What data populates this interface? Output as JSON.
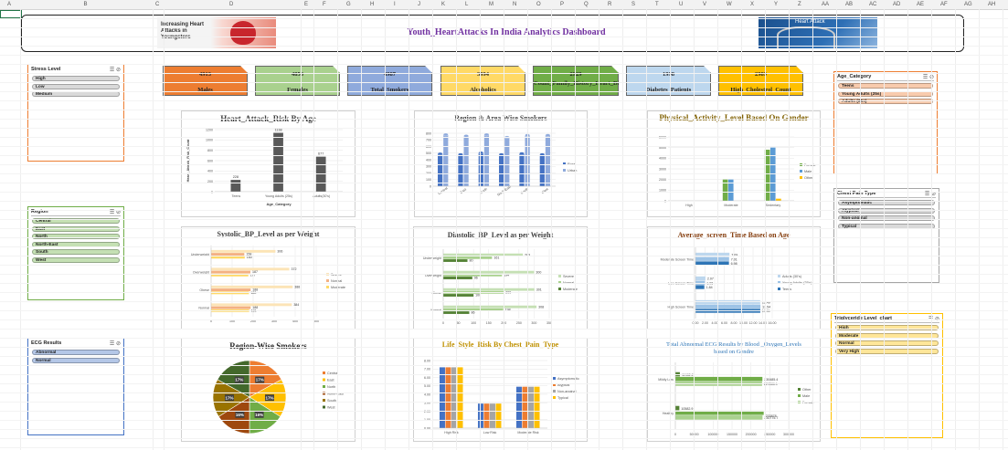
{
  "dashboard": {
    "title": "Youth_HeartAttacks In India Analytics Dashboard",
    "left_image_text": "Increasing Heart Attacks in Youngsters",
    "right_image_text": "Heart Attack"
  },
  "excel": {
    "columns": [
      "A",
      "B",
      "C",
      "D",
      "E",
      "F",
      "G",
      "H",
      "I",
      "J",
      "K",
      "L",
      "M",
      "N",
      "O",
      "P",
      "Q",
      "R",
      "S",
      "T",
      "U",
      "V",
      "W",
      "X",
      "Y",
      "Z",
      "AA",
      "AB",
      "AC",
      "AD",
      "AE",
      "AF",
      "AG",
      "AH"
    ]
  },
  "kpis": [
    {
      "value": "4913",
      "label": "Males",
      "color": "#ed7d31"
    },
    {
      "value": "4856",
      "label": "Females",
      "color": "#a9d18e"
    },
    {
      "value": "4987",
      "label": "Total_Smokers",
      "color": "#8faadc"
    },
    {
      "value": "3994",
      "label": "Alcoholics",
      "color": "#ffd966"
    },
    {
      "value": "2929",
      "label": "Count_Family_History_Heart_Disease",
      "color": "#70ad47"
    },
    {
      "value": "1998",
      "label": "Diabetes_Patients",
      "color": "#bdd7ee"
    },
    {
      "value": "2989",
      "label": "High_Cholestrol_Count",
      "color": "#ffc000"
    }
  ],
  "slicers": {
    "stress": {
      "title": "Stress Level",
      "items": [
        "High",
        "Low",
        "Medium"
      ]
    },
    "region": {
      "title": "Region",
      "items": [
        "Central",
        "East",
        "North",
        "North-East",
        "South",
        "West"
      ]
    },
    "ecg": {
      "title": "ECG Results",
      "items": [
        "Abnormal",
        "Normal"
      ]
    },
    "age": {
      "title": "Age_Category",
      "items": [
        "Teens",
        "Young Adults (25s)",
        "Adults (35s)"
      ]
    },
    "chest": {
      "title": "Chest Pain Type",
      "items": [
        "Asymptomatic",
        "Atypical",
        "Non-anginal",
        "Typical"
      ]
    },
    "trig": {
      "title": "Triglyceride Level_chart",
      "items": [
        "High",
        "Moderate",
        "Normal",
        "Very High"
      ]
    }
  },
  "filter_icon": "filter-icon",
  "chart_data": [
    {
      "id": "age_risk",
      "type": "bar",
      "title": "Heart_Attack_Risk By Age",
      "xlabel": "Age_Category",
      "ylabel": "Heart_Attack_Risk_Count",
      "categories": [
        "Teens",
        "Young Adults (25s)",
        "Adults(30's)"
      ],
      "values": [
        228,
        1138,
        677
      ],
      "value_labels": [
        "228",
        "1138",
        "677"
      ],
      "yticks": [
        "0",
        "200",
        "400",
        "600",
        "800",
        "1000",
        "1200"
      ],
      "ylim": [
        0,
        1200
      ],
      "color": "#595959"
    },
    {
      "id": "region_smokers",
      "type": "bar",
      "title": "Region & Area Wise Smokers",
      "categories": [
        "Central",
        "East",
        "North",
        "North-East",
        "South",
        "West"
      ],
      "series": [
        {
          "name": "Rural",
          "values": [
            490,
            480,
            505,
            480,
            495,
            480
          ],
          "color": "#4472c4"
        },
        {
          "name": "Urban",
          "values": [
            780,
            760,
            780,
            740,
            770,
            770
          ],
          "color": "#8faadc"
        }
      ],
      "yticks": [
        "0",
        "100",
        "200",
        "300",
        "400",
        "500",
        "600",
        "700",
        "800"
      ],
      "ylim": [
        0,
        800
      ]
    },
    {
      "id": "activity",
      "type": "bar",
      "title": "Physical_Activity_Level Based On Gender",
      "categories": [
        "High",
        "Moderate",
        "Sedentary"
      ],
      "series": [
        {
          "name": "Female",
          "values": [
            0,
            2000,
            4800
          ],
          "color": "#70ad47"
        },
        {
          "name": "Male",
          "values": [
            0,
            2000,
            5000
          ],
          "color": "#5b9bd5"
        },
        {
          "name": "Other",
          "values": [
            0,
            0,
            200
          ],
          "color": "#ffc000"
        }
      ],
      "yticks": [
        "0",
        "1000",
        "2000",
        "3000",
        "4000",
        "5000",
        "6000"
      ],
      "ylim": [
        0,
        6000
      ]
    },
    {
      "id": "systolic",
      "type": "bar",
      "title": "Systolic_BP_Level as per Weight",
      "categories": [
        "Underweight",
        "Overweight",
        "Obese",
        "Normal"
      ],
      "series": [
        {
          "name": "Severe",
          "values": [
            306,
            372,
            388,
            384
          ],
          "labels": [
            "306",
            "372",
            "388",
            "384"
          ],
          "color": "#fce4b6"
        },
        {
          "name": "Normal",
          "values": [
            158,
            187,
            188,
            188
          ],
          "labels": [
            "158",
            "187",
            "188",
            "188"
          ],
          "color": "#f4b183"
        },
        {
          "name": "Moderate",
          "values": [
            160,
            177,
            180,
            181
          ],
          "labels": [
            "160",
            "177",
            "180",
            "181"
          ],
          "color": "#ffd966"
        }
      ],
      "xticks": [
        "0",
        "100",
        "200",
        "300",
        "400",
        "500"
      ],
      "xlim": [
        0,
        500
      ]
    },
    {
      "id": "diastolic",
      "type": "bar",
      "title": "Diastolic_BP_Level as per Weight",
      "categories": [
        "Underweight",
        "Overweight",
        "Obese",
        "Normal"
      ],
      "series": [
        {
          "name": "Severe",
          "values": [
            263,
            300,
            301,
            308
          ],
          "labels": [
            "263",
            "300",
            "301",
            "308"
          ],
          "color": "#c5e0b4"
        },
        {
          "name": "Normal",
          "values": [
            161,
            194,
            200,
            198
          ],
          "labels": [
            "161",
            "194",
            "200",
            "198"
          ],
          "color": "#a9d18e"
        },
        {
          "name": "Moderate",
          "values": [
            80,
            96,
            100,
            86
          ],
          "labels": [
            "80",
            "96",
            "100",
            "86"
          ],
          "color": "#548235"
        }
      ],
      "xticks": [
        "0",
        "50",
        "100",
        "150",
        "200",
        "250",
        "300",
        "350"
      ],
      "xlim": [
        0,
        350
      ]
    },
    {
      "id": "screen",
      "type": "bar",
      "title": "Average_screen_Time Based on Age",
      "categories": [
        "Moderate Screen Time",
        "Low Screen Time",
        "High Screen Time"
      ],
      "series": [
        {
          "name": "Adults (30's)",
          "values": [
            7.09,
            2.07,
            13.49
          ],
          "labels": [
            "7.09",
            "2.07",
            "13.49"
          ],
          "color": "#bdd7ee"
        },
        {
          "name": "Young Adults (25's)",
          "values": [
            7.01,
            1.96,
            13.54
          ],
          "labels": [
            "7.01",
            "1.96",
            "13.54"
          ],
          "color": "#9dc3e6"
        },
        {
          "name": "Teens",
          "values": [
            6.98,
            1.84,
            13.51
          ],
          "labels": [
            "6.98",
            "1.84",
            "13.51"
          ],
          "color": "#2e75b6"
        }
      ],
      "xticks": [
        "0.00",
        "2.00",
        "4.00",
        "6.00",
        "8.00",
        "10.00",
        "12.00",
        "14.00",
        "16.00"
      ],
      "xlim": [
        0,
        16
      ]
    },
    {
      "id": "region_pie",
      "type": "pie",
      "title": "Region-Wise Smokers",
      "categories": [
        "Central",
        "East",
        "North",
        "North-East",
        "South",
        "West"
      ],
      "values": [
        17,
        17,
        16,
        16,
        17,
        17
      ],
      "labels": [
        "17%",
        "17%",
        "16%",
        "16%",
        "17%",
        "17%"
      ],
      "colors": [
        "#ed7d31",
        "#ffc000",
        "#70ad47",
        "#9e480e",
        "#997300",
        "#43682b"
      ]
    },
    {
      "id": "lifestyle",
      "type": "bar",
      "title": "Life_Style_Risk By Chest_Pain_Type",
      "categories": [
        "High Risk",
        "Low Risk",
        "Moderate Risk"
      ],
      "series": [
        {
          "name": "Asymptomatic",
          "values": [
            7.2,
            2.9,
            4.9
          ],
          "color": "#4472c4"
        },
        {
          "name": "Atypical",
          "values": [
            7.2,
            2.9,
            4.9
          ],
          "color": "#ed7d31"
        },
        {
          "name": "Non-anginal",
          "values": [
            7.2,
            2.9,
            4.9
          ],
          "color": "#a5a5a5"
        },
        {
          "name": "Typical",
          "values": [
            7.2,
            2.9,
            4.9
          ],
          "color": "#ffc000"
        }
      ],
      "yticks": [
        "0.00",
        "1.00",
        "2.00",
        "3.00",
        "4.00",
        "5.00",
        "6.00",
        "7.00",
        "8.00"
      ],
      "ylim": [
        0,
        8
      ]
    },
    {
      "id": "ecg",
      "type": "bar",
      "title": "Total Abnormal ECG Results by Blood _Oxygen_Levels based on Gendre",
      "categories": [
        "Mildly Low",
        "Healthy"
      ],
      "series": [
        {
          "name": "Other",
          "values": [
            11982.2,
            10582.9
          ],
          "labels": [
            "11982.2",
            "10582.9"
          ],
          "color": "#548235"
        },
        {
          "name": "Male",
          "values": [
            230485.4,
            233878
          ],
          "labels": [
            "230485.4",
            ""
          ],
          "color": "#70ad47"
        },
        {
          "name": "Female",
          "values": [
            229586.1,
            230775.7
          ],
          "labels": [
            "229586.1",
            "230775.7"
          ],
          "color": "#a9d18e"
        }
      ],
      "extra_labels": [
        "233878"
      ],
      "xticks": [
        "0",
        "50000",
        "100000",
        "150000",
        "200000",
        "250000",
        "300000"
      ],
      "xlim": [
        0,
        300000
      ]
    }
  ]
}
